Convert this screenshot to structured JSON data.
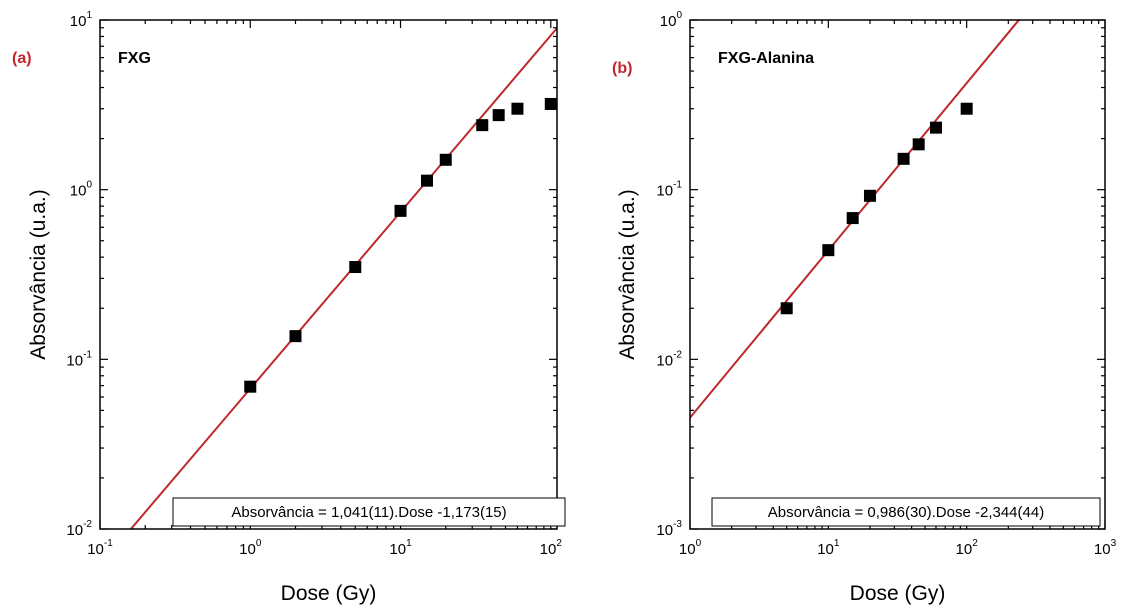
{
  "chart_data": [
    {
      "type": "scatter",
      "panel_label": "(a)",
      "title": "FXG",
      "xlabel": "Dose (Gy)",
      "ylabel": "Absorvância (u.a.)",
      "x_scale": "log",
      "y_scale": "log",
      "xlim": [
        0.1,
        110
      ],
      "ylim": [
        0.01,
        10
      ],
      "x_ticks": [
        0.1,
        1,
        10,
        100
      ],
      "y_ticks": [
        0.01,
        0.1,
        1,
        10
      ],
      "x_tick_labels": [
        [
          "10",
          "-1"
        ],
        [
          "10",
          "0"
        ],
        [
          "10",
          "1"
        ],
        [
          "10",
          "2"
        ]
      ],
      "y_tick_labels": [
        [
          "10",
          "-2"
        ],
        [
          "10",
          "-1"
        ],
        [
          "10",
          "0"
        ],
        [
          "10",
          "1"
        ]
      ],
      "grid": false,
      "series": [
        {
          "type": "scatter",
          "marker": "square",
          "color": "#000000",
          "x": [
            1,
            2,
            5,
            10,
            15,
            20,
            35,
            45,
            60,
            100
          ],
          "y": [
            0.069,
            0.137,
            0.35,
            0.75,
            1.13,
            1.5,
            2.4,
            2.75,
            3.0,
            3.2
          ]
        },
        {
          "type": "line",
          "color": "#c0282d",
          "fit": {
            "slope": 1.041,
            "intercept_log10": -1.173
          }
        }
      ],
      "annotation": "Absorvância = 1,041(11).Dose -1,173(15)"
    },
    {
      "type": "scatter",
      "panel_label": "(b)",
      "title": "FXG-Alanina",
      "xlabel": "Dose (Gy)",
      "ylabel": "Absorvância (u.a.)",
      "x_scale": "log",
      "y_scale": "log",
      "xlim": [
        1,
        1000
      ],
      "ylim": [
        0.001,
        1
      ],
      "x_ticks": [
        1,
        10,
        100,
        1000
      ],
      "y_ticks": [
        0.001,
        0.01,
        0.1,
        1
      ],
      "x_tick_labels": [
        [
          "10",
          "0"
        ],
        [
          "10",
          "1"
        ],
        [
          "10",
          "2"
        ],
        [
          "10",
          "3"
        ]
      ],
      "y_tick_labels": [
        [
          "10",
          "-3"
        ],
        [
          "10",
          "-2"
        ],
        [
          "10",
          "-1"
        ],
        [
          "10",
          "0"
        ]
      ],
      "grid": false,
      "series": [
        {
          "type": "scatter",
          "marker": "square",
          "color": "#000000",
          "x": [
            5,
            10,
            15,
            20,
            35,
            45,
            60,
            100
          ],
          "y": [
            0.02,
            0.044,
            0.068,
            0.092,
            0.152,
            0.185,
            0.232,
            0.3
          ]
        },
        {
          "type": "line",
          "color": "#c0282d",
          "fit": {
            "slope": 0.986,
            "intercept_log10": -2.344
          }
        }
      ],
      "annotation": "Absorvância = 0,986(30).Dose -2,344(44)"
    }
  ]
}
